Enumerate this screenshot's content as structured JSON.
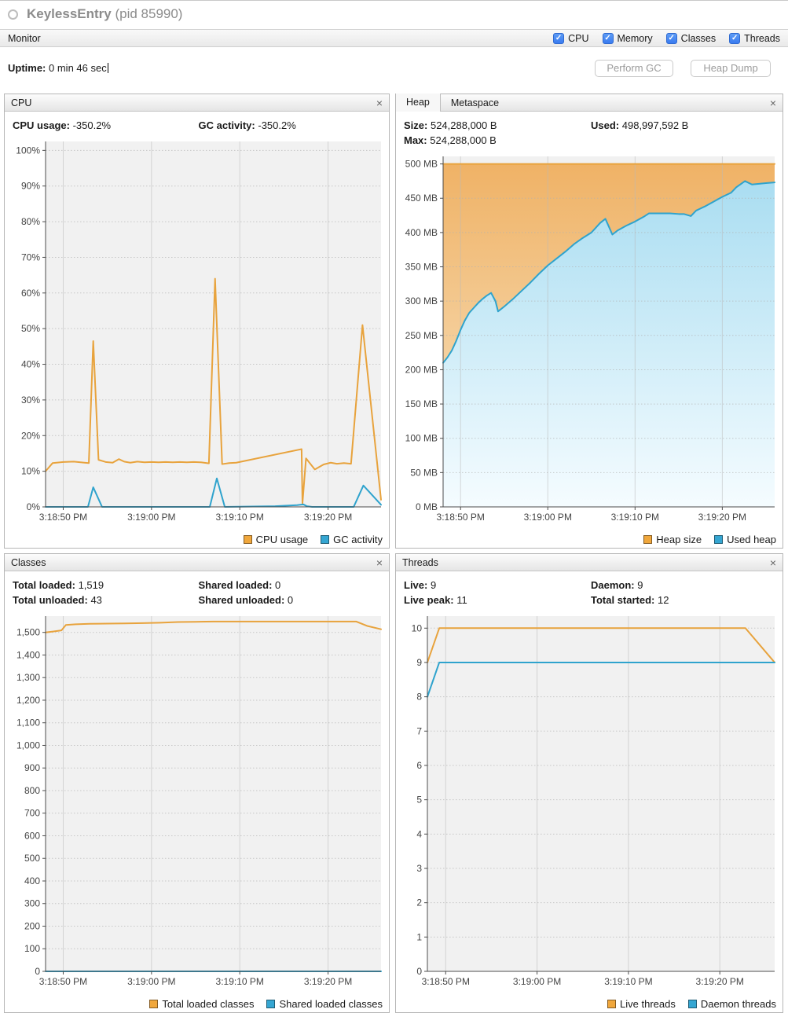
{
  "window": {
    "title": "KeylessEntry",
    "pid": "(pid 85990)"
  },
  "toolbar": {
    "tab": "Monitor",
    "checkboxes": [
      {
        "label": "CPU",
        "checked": true
      },
      {
        "label": "Memory",
        "checked": true
      },
      {
        "label": "Classes",
        "checked": true
      },
      {
        "label": "Threads",
        "checked": true
      }
    ]
  },
  "uptime": {
    "label": "Uptime:",
    "value": "0 min 46 sec"
  },
  "actions": {
    "perform_gc": "Perform GC",
    "heap_dump": "Heap Dump"
  },
  "icons": {
    "close": "×",
    "check": "✓"
  },
  "colors": {
    "orange": "#e8a33d",
    "blue": "#2fa3cd",
    "legend_orange": "#f0a73c",
    "legend_blue": "#35a6d2",
    "orange_grad": [
      "#efb164",
      "#f9e7c8"
    ],
    "blue_grad": [
      "#a4dbf0",
      "#f5fcff"
    ],
    "checkbox_blue": "#3a7bf0",
    "plot_bg": "#f1f1f1"
  },
  "panels": {
    "cpu": {
      "title": "CPU",
      "stats": [
        {
          "label": "CPU usage:",
          "value": "-350.2%"
        },
        {
          "label": "GC activity:",
          "value": "-350.2%"
        }
      ],
      "legend": [
        {
          "label": "CPU usage",
          "color": "legend_orange"
        },
        {
          "label": "GC activity",
          "color": "legend_blue"
        }
      ]
    },
    "heap": {
      "tabs": [
        "Heap",
        "Metaspace"
      ],
      "stats": [
        {
          "label": "Size:",
          "value": "524,288,000 B"
        },
        {
          "label": "Max:",
          "value": "524,288,000 B"
        },
        {
          "label": "Used:",
          "value": "498,997,592 B"
        }
      ],
      "legend": [
        {
          "label": "Heap size",
          "color": "legend_orange"
        },
        {
          "label": "Used heap",
          "color": "legend_blue"
        }
      ]
    },
    "classes": {
      "title": "Classes",
      "stats": [
        {
          "label": "Total loaded:",
          "value": "1,519"
        },
        {
          "label": "Total unloaded:",
          "value": "43"
        },
        {
          "label": "Shared loaded:",
          "value": "0"
        },
        {
          "label": "Shared unloaded:",
          "value": "0"
        }
      ],
      "legend": [
        {
          "label": "Total loaded classes",
          "color": "legend_orange"
        },
        {
          "label": "Shared loaded classes",
          "color": "legend_blue"
        }
      ]
    },
    "threads": {
      "title": "Threads",
      "stats": [
        {
          "label": "Live:",
          "value": "9"
        },
        {
          "label": "Live peak:",
          "value": "11"
        },
        {
          "label": "Daemon:",
          "value": "9"
        },
        {
          "label": "Total started:",
          "value": "12"
        }
      ],
      "legend": [
        {
          "label": "Live threads",
          "color": "legend_orange"
        },
        {
          "label": "Daemon threads",
          "color": "legend_blue"
        }
      ]
    }
  },
  "chart_data": [
    {
      "id": "cpu",
      "type": "line",
      "title": "CPU usage / GC activity over time",
      "x_domain": [
        0,
        38
      ],
      "x_ticks": [
        2,
        12,
        22,
        32
      ],
      "x_tick_labels": [
        "3:18:50 PM",
        "3:19:00 PM",
        "3:19:10 PM",
        "3:19:20 PM"
      ],
      "ylim": [
        0,
        102.5
      ],
      "y_ticks": [
        0,
        10,
        20,
        30,
        40,
        50,
        60,
        70,
        80,
        90,
        100
      ],
      "y_format": "percent",
      "series": [
        {
          "name": "CPU usage",
          "color": "orange",
          "points": [
            [
              0,
              10
            ],
            [
              0.8,
              12.3
            ],
            [
              2,
              12.6
            ],
            [
              3.2,
              12.7
            ],
            [
              4.4,
              12.4
            ],
            [
              4.9,
              12.3
            ],
            [
              5.4,
              46.5
            ],
            [
              6,
              13.2
            ],
            [
              6.8,
              12.6
            ],
            [
              7.6,
              12.4
            ],
            [
              8.3,
              13.4
            ],
            [
              8.9,
              12.7
            ],
            [
              9.6,
              12.4
            ],
            [
              10.4,
              12.7
            ],
            [
              11.2,
              12.5
            ],
            [
              12,
              12.6
            ],
            [
              12.8,
              12.5
            ],
            [
              13.6,
              12.6
            ],
            [
              14.4,
              12.5
            ],
            [
              15.2,
              12.6
            ],
            [
              16,
              12.5
            ],
            [
              16.8,
              12.6
            ],
            [
              17.6,
              12.5
            ],
            [
              18.5,
              12.2
            ],
            [
              19.2,
              64
            ],
            [
              20,
              12
            ],
            [
              20.8,
              12.3
            ],
            [
              21.6,
              12.4
            ],
            [
              29,
              16.2
            ],
            [
              29.1,
              1
            ],
            [
              29.5,
              13.6
            ],
            [
              30.5,
              10.5
            ],
            [
              31.5,
              11.9
            ],
            [
              32.3,
              12.4
            ],
            [
              33,
              12.1
            ],
            [
              33.8,
              12.3
            ],
            [
              34.6,
              12.1
            ],
            [
              35.9,
              51
            ],
            [
              38,
              2
            ]
          ]
        },
        {
          "name": "GC activity",
          "color": "blue",
          "points": [
            [
              0,
              0
            ],
            [
              4.8,
              0
            ],
            [
              5.4,
              5.5
            ],
            [
              6.4,
              0
            ],
            [
              18.6,
              0
            ],
            [
              19.4,
              8
            ],
            [
              20.3,
              0
            ],
            [
              26,
              0.2
            ],
            [
              28.5,
              0.5
            ],
            [
              29.2,
              0.7
            ],
            [
              29.6,
              0.2
            ],
            [
              30.2,
              0
            ],
            [
              34.9,
              0
            ],
            [
              36,
              6
            ],
            [
              38,
              0.6
            ]
          ]
        }
      ]
    },
    {
      "id": "heap",
      "type": "area",
      "title": "Heap size / Used heap over time",
      "x_domain": [
        0,
        38
      ],
      "x_ticks": [
        2,
        12,
        22,
        32
      ],
      "x_tick_labels": [
        "3:18:50 PM",
        "3:19:00 PM",
        "3:19:10 PM",
        "3:19:20 PM"
      ],
      "ylim": [
        0,
        511
      ],
      "y_ticks": [
        0,
        50,
        100,
        150,
        200,
        250,
        300,
        350,
        400,
        450,
        500
      ],
      "y_format": "mb",
      "series": [
        {
          "name": "Heap size",
          "color": "orange",
          "fill": "orange_grad",
          "points": [
            [
              0,
              500
            ],
            [
              38,
              500
            ]
          ]
        },
        {
          "name": "Used heap",
          "color": "blue",
          "fill": "blue_grad",
          "points": [
            [
              0,
              210
            ],
            [
              0.5,
              218
            ],
            [
              1,
              228
            ],
            [
              1.5,
              242
            ],
            [
              2,
              258
            ],
            [
              2.5,
              272
            ],
            [
              3,
              283
            ],
            [
              3.5,
              290
            ],
            [
              4,
              297
            ],
            [
              4.5,
              303
            ],
            [
              5,
              308
            ],
            [
              5.5,
              312
            ],
            [
              6,
              300
            ],
            [
              6.3,
              285
            ],
            [
              7,
              292
            ],
            [
              8,
              303
            ],
            [
              9,
              315
            ],
            [
              10,
              327
            ],
            [
              11,
              340
            ],
            [
              12,
              352
            ],
            [
              13,
              362
            ],
            [
              14,
              372
            ],
            [
              15,
              383
            ],
            [
              16,
              392
            ],
            [
              17,
              400
            ],
            [
              17.5,
              407
            ],
            [
              18,
              414
            ],
            [
              18.6,
              420
            ],
            [
              19.4,
              397
            ],
            [
              20,
              403
            ],
            [
              21,
              410
            ],
            [
              22,
              416
            ],
            [
              23,
              423
            ],
            [
              23.6,
              428
            ],
            [
              25,
              428
            ],
            [
              26,
              428
            ],
            [
              27,
              427
            ],
            [
              27.6,
              427
            ],
            [
              28.4,
              424
            ],
            [
              29,
              432
            ],
            [
              30,
              438
            ],
            [
              31,
              445
            ],
            [
              32,
              452
            ],
            [
              33,
              458
            ],
            [
              33.6,
              466
            ],
            [
              34.6,
              475
            ],
            [
              35.4,
              470
            ],
            [
              36.2,
              471
            ],
            [
              37,
              472
            ],
            [
              38,
              473
            ]
          ]
        }
      ]
    },
    {
      "id": "classes",
      "type": "line",
      "title": "Loaded classes over time",
      "x_domain": [
        0,
        38
      ],
      "x_ticks": [
        2,
        12,
        22,
        32
      ],
      "x_tick_labels": [
        "3:18:50 PM",
        "3:19:00 PM",
        "3:19:10 PM",
        "3:19:20 PM"
      ],
      "ylim": [
        0,
        1572
      ],
      "y_ticks": [
        0,
        100,
        200,
        300,
        400,
        500,
        600,
        700,
        800,
        900,
        1000,
        1100,
        1200,
        1300,
        1400,
        1500
      ],
      "y_format": "comma",
      "series": [
        {
          "name": "Total loaded classes",
          "color": "orange",
          "points": [
            [
              0,
              1500
            ],
            [
              0.9,
              1504
            ],
            [
              1.8,
              1509
            ],
            [
              2.3,
              1533
            ],
            [
              3.4,
              1536
            ],
            [
              5,
              1538
            ],
            [
              7,
              1539
            ],
            [
              9,
              1540
            ],
            [
              11,
              1541
            ],
            [
              13,
              1543
            ],
            [
              15,
              1546
            ],
            [
              17,
              1547
            ],
            [
              19,
              1548
            ],
            [
              23,
              1548
            ],
            [
              27,
              1548
            ],
            [
              31,
              1548
            ],
            [
              35.2,
              1548
            ],
            [
              36.4,
              1529
            ],
            [
              38,
              1514
            ]
          ]
        },
        {
          "name": "Shared loaded classes",
          "color": "blue",
          "points": [
            [
              0,
              0
            ],
            [
              38,
              0
            ]
          ]
        }
      ]
    },
    {
      "id": "threads",
      "type": "line",
      "title": "Live / Daemon threads over time",
      "x_domain": [
        0,
        38
      ],
      "x_ticks": [
        2,
        12,
        22,
        32
      ],
      "x_tick_labels": [
        "3:18:50 PM",
        "3:19:00 PM",
        "3:19:10 PM",
        "3:19:20 PM"
      ],
      "ylim": [
        0,
        10.35
      ],
      "y_ticks": [
        0,
        1,
        2,
        3,
        4,
        5,
        6,
        7,
        8,
        9,
        10
      ],
      "y_format": "plain",
      "series": [
        {
          "name": "Live threads",
          "color": "orange",
          "points": [
            [
              0,
              9
            ],
            [
              1.3,
              10
            ],
            [
              34.8,
              10
            ],
            [
              38,
              9
            ]
          ]
        },
        {
          "name": "Daemon threads",
          "color": "blue",
          "points": [
            [
              0,
              8
            ],
            [
              1.3,
              9
            ],
            [
              38,
              9
            ]
          ]
        }
      ]
    }
  ]
}
